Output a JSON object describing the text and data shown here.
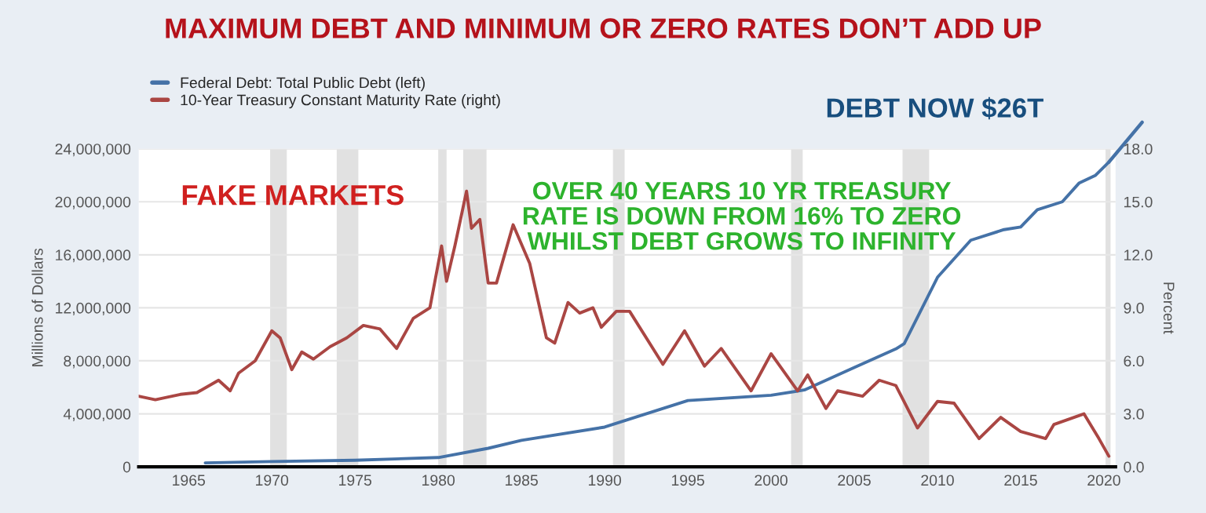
{
  "chart_data": {
    "type": "line",
    "title": "MAXIMUM DEBT AND MINIMUM OR ZERO RATES DON’T ADD UP",
    "ylabel": "Millions of Dollars",
    "y2label": "Percent",
    "annotations": [
      "FAKE MARKETS",
      "OVER 40 YEARS 10 YR TREASURY\nRATE IS DOWN FROM 16% TO ZERO\nWHILST DEBT GROWS TO INFINITY",
      "DEBT NOW $26T"
    ],
    "xlim": [
      1962,
      2020.7
    ],
    "xticks": [
      1965,
      1970,
      1975,
      1980,
      1985,
      1990,
      1995,
      2000,
      2005,
      2010,
      2015,
      2020
    ],
    "ylim": [
      0,
      24000000
    ],
    "yticks": [
      {
        "value": 0,
        "label": "0"
      },
      {
        "value": 4000000,
        "label": "4,000,000"
      },
      {
        "value": 8000000,
        "label": "8,000,000"
      },
      {
        "value": 12000000,
        "label": "12,000,000"
      },
      {
        "value": 16000000,
        "label": "16,000,000"
      },
      {
        "value": 20000000,
        "label": "20,000,000"
      },
      {
        "value": 24000000,
        "label": "24,000,000"
      }
    ],
    "y2lim": [
      0,
      18
    ],
    "y2ticks": [
      {
        "value": 0,
        "label": "0.0"
      },
      {
        "value": 3,
        "label": "3.0"
      },
      {
        "value": 6,
        "label": "6.0"
      },
      {
        "value": 9,
        "label": "9.0"
      },
      {
        "value": 12,
        "label": "12.0"
      },
      {
        "value": 15,
        "label": "15.0"
      },
      {
        "value": 18,
        "label": "18.0"
      }
    ],
    "grid": "y",
    "legend": "top left",
    "bands": [
      {
        "axis": "x",
        "from": 1969.9,
        "to": 1970.9,
        "color": "#e1e1e1"
      },
      {
        "axis": "x",
        "from": 1973.9,
        "to": 1975.2,
        "color": "#e1e1e1"
      },
      {
        "axis": "x",
        "from": 1980.0,
        "to": 1980.5,
        "color": "#e1e1e1"
      },
      {
        "axis": "x",
        "from": 1981.5,
        "to": 1982.9,
        "color": "#e1e1e1"
      },
      {
        "axis": "x",
        "from": 1990.5,
        "to": 1991.2,
        "color": "#e1e1e1"
      },
      {
        "axis": "x",
        "from": 2001.2,
        "to": 2001.9,
        "color": "#e1e1e1"
      },
      {
        "axis": "x",
        "from": 2007.9,
        "to": 2009.5,
        "color": "#e1e1e1"
      },
      {
        "axis": "x",
        "from": 2020.1,
        "to": 2020.4,
        "color": "#e1e1e1"
      }
    ],
    "series": [
      {
        "name": "Federal Debt: Total Public Debt (left)",
        "color": "#4572a7",
        "axis": "y",
        "x": [
          1966,
          1970,
          1975,
          1980,
          1983,
          1985,
          1990,
          1995,
          2000,
          2002,
          2005,
          2007.5,
          2008,
          2010,
          2012,
          2014,
          2015,
          2016,
          2017.5,
          2018.5,
          2019.5,
          2020.3
        ],
        "values": [
          300000,
          400000,
          500000,
          700000,
          1400000,
          2000000,
          3000000,
          5000000,
          5400000,
          5800000,
          7500000,
          8900000,
          9300000,
          14300000,
          17100000,
          17900000,
          18100000,
          19400000,
          20000000,
          21400000,
          22000000,
          23000000
        ]
      },
      {
        "name": "10-Year Treasury Constant Maturity Rate (right)",
        "color": "#aa4643",
        "axis": "y2",
        "x": [
          1962.0,
          1963.0,
          1964.5,
          1965.5,
          1966.8,
          1967.5,
          1968.0,
          1969.0,
          1970.0,
          1970.5,
          1971.2,
          1971.8,
          1972.5,
          1973.5,
          1974.5,
          1975.5,
          1976.5,
          1977.5,
          1978.5,
          1979.5,
          1980.2,
          1980.5,
          1981.0,
          1981.7,
          1982.0,
          1982.5,
          1983.0,
          1983.5,
          1984.5,
          1985.5,
          1986.5,
          1987.0,
          1987.8,
          1988.5,
          1989.3,
          1989.8,
          1990.7,
          1991.5,
          1993.5,
          1994.8,
          1996.0,
          1997.0,
          1998.8,
          2000.0,
          2001.6,
          2002.2,
          2003.3,
          2004.0,
          2005.5,
          2006.5,
          2007.5,
          2008.8,
          2010.0,
          2011.0,
          2012.5,
          2013.8,
          2015.0,
          2016.5,
          2017.0,
          2018.8,
          2019.7,
          2020.3
        ],
        "values": [
          4.0,
          3.8,
          4.1,
          4.2,
          4.9,
          4.3,
          5.3,
          6.0,
          7.7,
          7.3,
          5.5,
          6.5,
          6.1,
          6.8,
          7.3,
          8.0,
          7.8,
          6.7,
          8.4,
          9.0,
          12.5,
          10.5,
          12.5,
          15.6,
          13.5,
          14.0,
          10.4,
          10.4,
          13.7,
          11.5,
          7.3,
          7.0,
          9.3,
          8.7,
          9.0,
          7.9,
          8.8,
          8.8,
          5.8,
          7.7,
          5.7,
          6.7,
          4.3,
          6.4,
          4.3,
          5.2,
          3.3,
          4.3,
          4.0,
          4.9,
          4.6,
          2.2,
          3.7,
          3.6,
          1.6,
          2.8,
          2.0,
          1.6,
          2.4,
          3.0,
          1.6,
          0.6
        ]
      }
    ]
  }
}
